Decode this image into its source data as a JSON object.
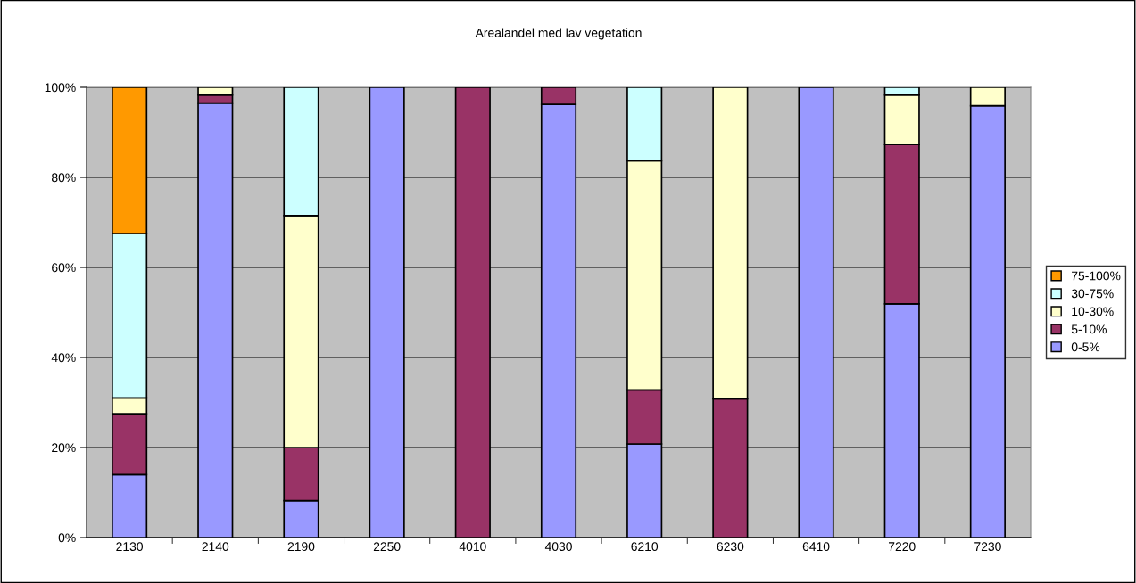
{
  "chart_data": {
    "type": "bar",
    "title": "Arealandel med lav vegetation",
    "stacked": true,
    "categories": [
      "2130",
      "2140",
      "2190",
      "2250",
      "4010",
      "4030",
      "6210",
      "6230",
      "6410",
      "7220",
      "7230"
    ],
    "series": [
      {
        "name": "0-5%",
        "color": "#9999ff",
        "values": [
          14,
          96.5,
          8.2,
          100,
          0,
          96.2,
          20.8,
          0,
          100,
          51.9,
          95.9
        ]
      },
      {
        "name": "5-10%",
        "color": "#993366",
        "values": [
          13.5,
          1.8,
          11.8,
          0,
          100,
          3.8,
          12,
          30.8,
          0,
          35.4,
          0
        ]
      },
      {
        "name": "10-30%",
        "color": "#ffffcc",
        "values": [
          3.5,
          1.7,
          51.5,
          0,
          0,
          0,
          50.9,
          69.2,
          0,
          11,
          4.1
        ]
      },
      {
        "name": "30-75%",
        "color": "#ccffff",
        "values": [
          36.5,
          0,
          28.5,
          0,
          0,
          0,
          16.3,
          0,
          0,
          1.7,
          0
        ]
      },
      {
        "name": "75-100%",
        "color": "#ff9900",
        "values": [
          32.5,
          0,
          0,
          0,
          0,
          0,
          0,
          0,
          0,
          0,
          0
        ]
      }
    ],
    "ylim": [
      0,
      100
    ],
    "yticks": [
      {
        "value": 0,
        "label": "0%"
      },
      {
        "value": 20,
        "label": "20%"
      },
      {
        "value": 40,
        "label": "40%"
      },
      {
        "value": 60,
        "label": "60%"
      },
      {
        "value": 80,
        "label": "80%"
      },
      {
        "value": 100,
        "label": "100%"
      }
    ],
    "grid": "y",
    "legend": "right"
  }
}
